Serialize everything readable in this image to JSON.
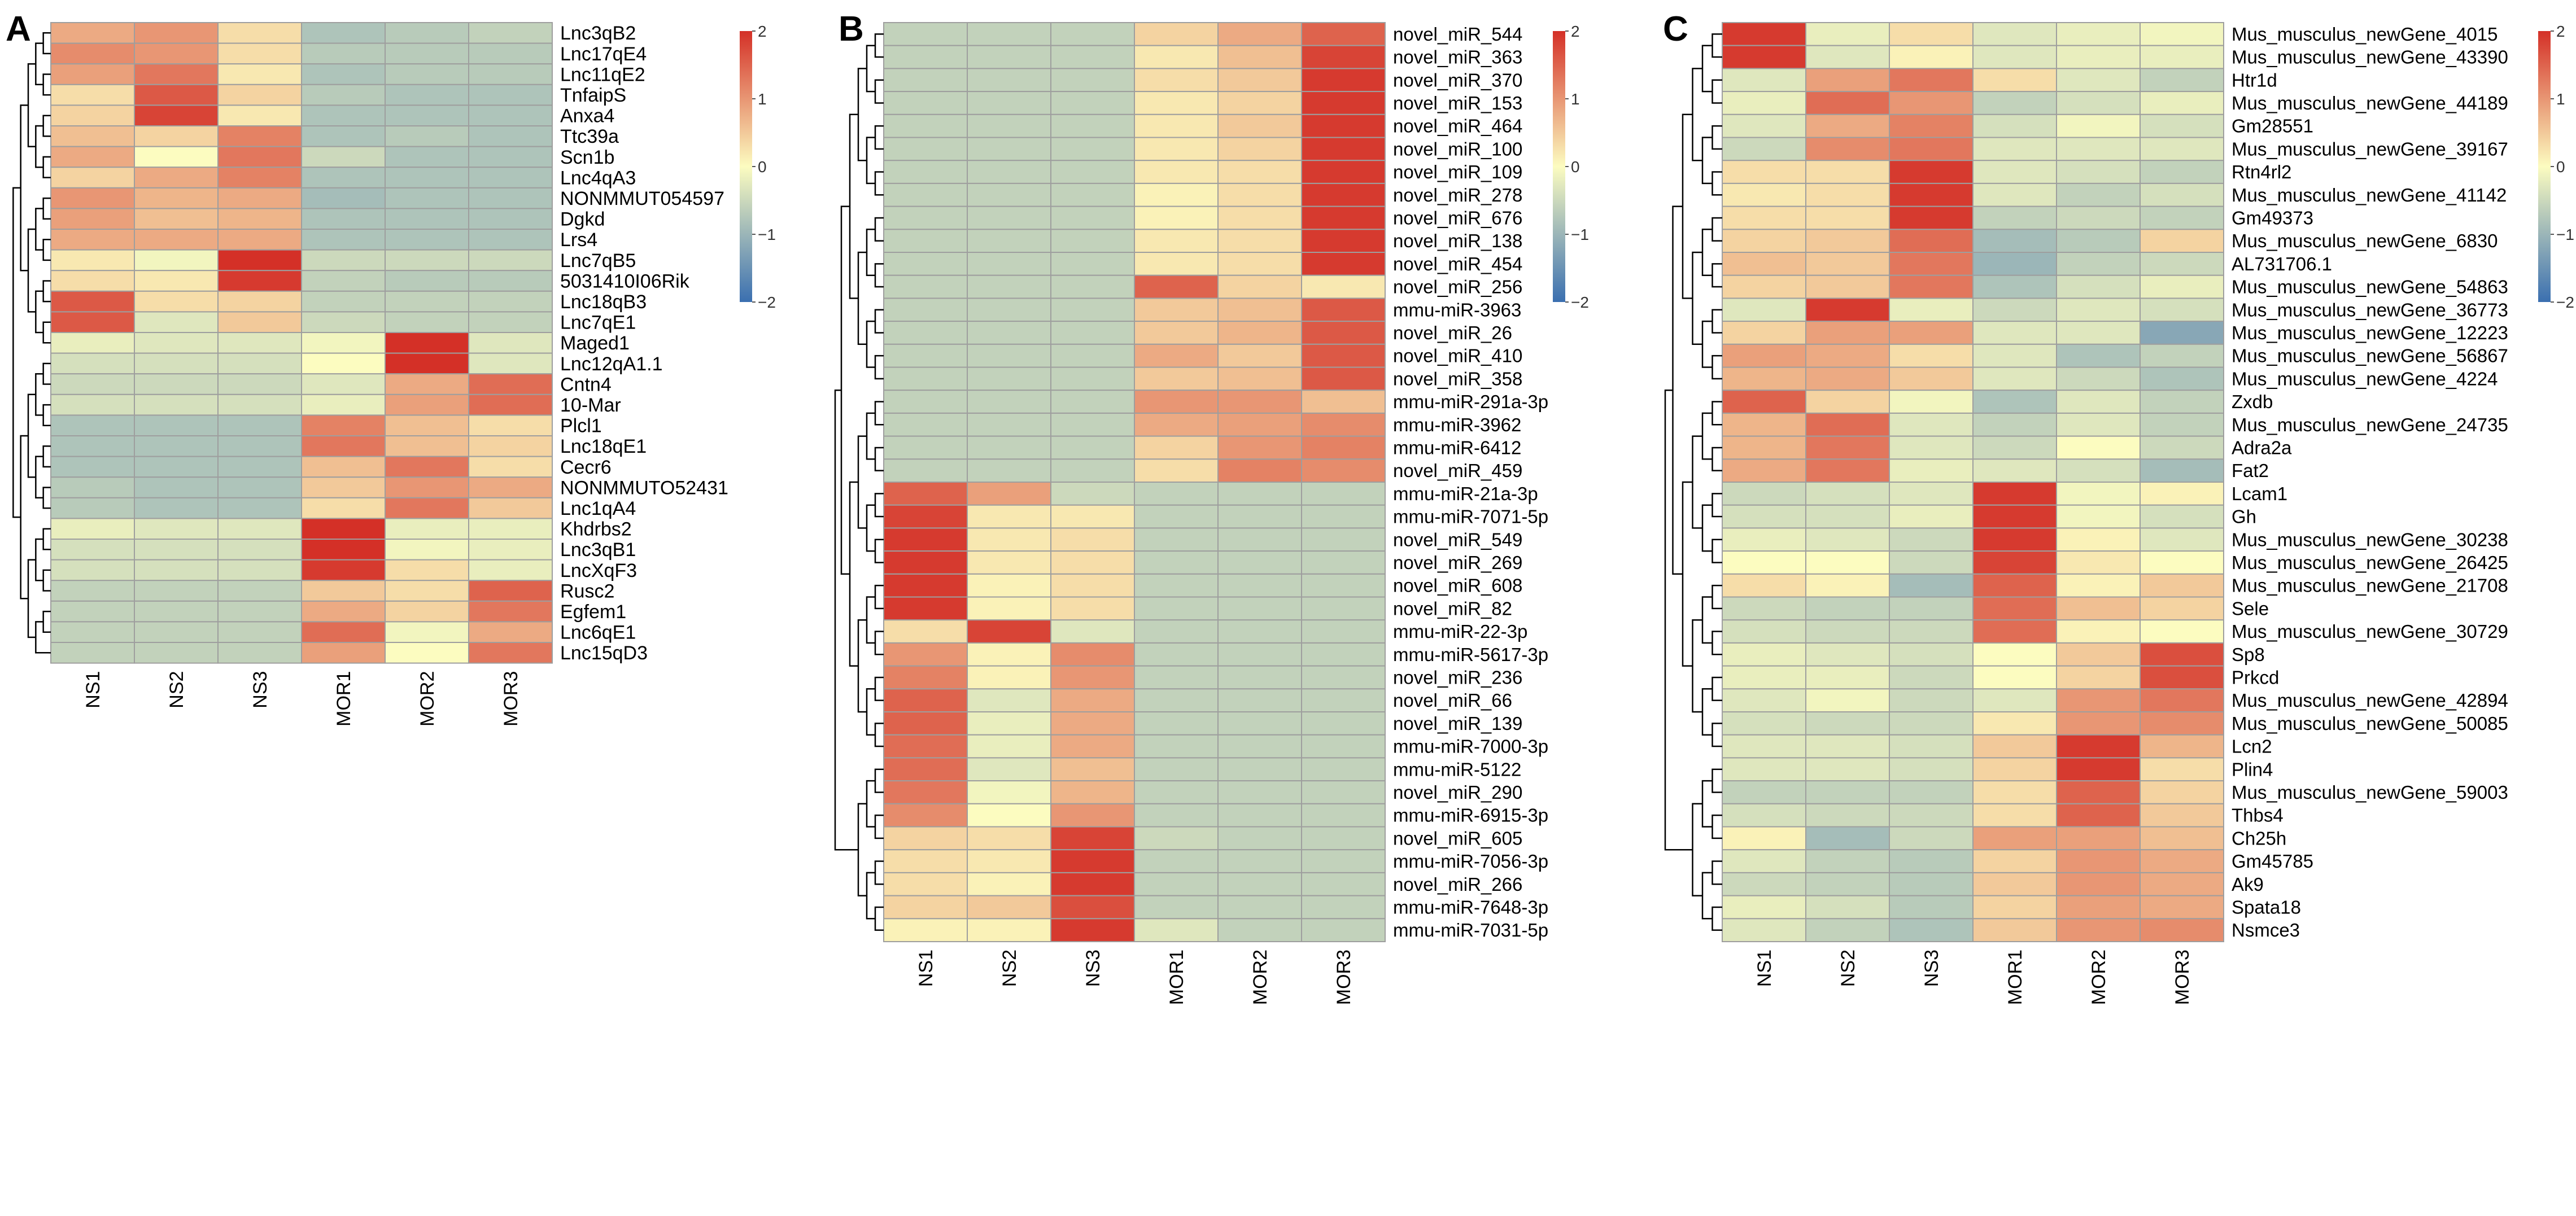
{
  "colors": {
    "low": "#3a6fb0",
    "mid": "#fcfcc0",
    "high": "#d43027",
    "grid": "#9e9e9e",
    "tree": "#000000"
  },
  "chart_data": [
    {
      "panel_label": "A",
      "type": "heatmap",
      "columns": [
        "NS1",
        "NS2",
        "NS3",
        "MOR1",
        "MOR2",
        "MOR3"
      ],
      "rows": [
        "Lnc3qB2",
        "Lnc17qE4",
        "Lnc11qE2",
        "TnfaipS",
        "Anxa4",
        "Ttc39a",
        "Scn1b",
        "Lnc4qA3",
        "NONMMUT054597",
        "Dgkd",
        "Lrs4",
        "Lnc7qB5",
        "5031410I06Rik",
        "Lnc18qB3",
        "Lnc7qE1",
        "Maged1",
        "Lnc12qA1.1",
        "Cntn4",
        "10-Mar",
        "Plcl1",
        "Lnc18qE1",
        "Cecr6",
        "NONMMUTO52431",
        "Lnc1qA4",
        "Khdrbs2",
        "Lnc3qB1",
        "LncXqF3",
        "Rusc2",
        "Egfem1",
        "Lnc6qE1",
        "Lnc15qD3"
      ],
      "values": [
        [
          0.8,
          1.0,
          0.3,
          -0.8,
          -0.7,
          -0.6
        ],
        [
          1.1,
          1.0,
          0.3,
          -0.7,
          -0.7,
          -0.7
        ],
        [
          0.9,
          1.3,
          0.2,
          -0.8,
          -0.7,
          -0.7
        ],
        [
          0.3,
          1.6,
          0.4,
          -0.7,
          -0.8,
          -0.8
        ],
        [
          0.4,
          1.8,
          0.2,
          -0.8,
          -0.8,
          -0.8
        ],
        [
          0.6,
          0.4,
          1.2,
          -0.8,
          -0.7,
          -0.8
        ],
        [
          0.8,
          0.0,
          1.3,
          -0.5,
          -0.8,
          -0.8
        ],
        [
          0.4,
          0.8,
          1.2,
          -0.8,
          -0.8,
          -0.8
        ],
        [
          1.0,
          0.7,
          0.8,
          -0.9,
          -0.8,
          -0.8
        ],
        [
          0.9,
          0.6,
          0.7,
          -0.8,
          -0.8,
          -0.8
        ],
        [
          0.8,
          0.8,
          0.8,
          -0.8,
          -0.8,
          -0.8
        ],
        [
          0.2,
          -0.1,
          2.0,
          -0.5,
          -0.5,
          -0.5
        ],
        [
          0.3,
          0.2,
          1.9,
          -0.6,
          -0.7,
          -0.7
        ],
        [
          1.6,
          0.3,
          0.4,
          -0.6,
          -0.6,
          -0.6
        ],
        [
          1.6,
          -0.3,
          0.5,
          -0.5,
          -0.6,
          -0.6
        ],
        [
          -0.2,
          -0.3,
          -0.3,
          -0.1,
          2.0,
          -0.3
        ],
        [
          -0.4,
          -0.4,
          -0.4,
          0.0,
          2.0,
          -0.3
        ],
        [
          -0.5,
          -0.5,
          -0.5,
          -0.3,
          0.8,
          1.4
        ],
        [
          -0.4,
          -0.4,
          -0.4,
          -0.2,
          0.9,
          1.4
        ],
        [
          -0.8,
          -0.8,
          -0.8,
          1.2,
          0.6,
          0.3
        ],
        [
          -0.8,
          -0.8,
          -0.8,
          1.3,
          0.6,
          0.4
        ],
        [
          -0.8,
          -0.8,
          -0.8,
          0.6,
          1.3,
          0.3
        ],
        [
          -0.7,
          -0.8,
          -0.8,
          0.5,
          1.0,
          0.8
        ],
        [
          -0.7,
          -0.8,
          -0.8,
          0.3,
          1.3,
          0.5
        ],
        [
          -0.2,
          -0.3,
          -0.3,
          2.0,
          -0.2,
          -0.2
        ],
        [
          -0.4,
          -0.4,
          -0.4,
          2.0,
          -0.1,
          -0.2
        ],
        [
          -0.4,
          -0.4,
          -0.4,
          1.9,
          0.3,
          -0.2
        ],
        [
          -0.6,
          -0.6,
          -0.6,
          0.5,
          0.3,
          1.5
        ],
        [
          -0.6,
          -0.6,
          -0.6,
          0.8,
          0.4,
          1.3
        ],
        [
          -0.6,
          -0.6,
          -0.6,
          1.4,
          -0.1,
          0.8
        ],
        [
          -0.6,
          -0.6,
          -0.6,
          0.9,
          0.0,
          1.3
        ]
      ],
      "legend_ticks": [
        2,
        1,
        0,
        -1,
        -2
      ],
      "vmin": -2,
      "vmax": 2
    },
    {
      "panel_label": "B",
      "type": "heatmap",
      "columns": [
        "NS1",
        "NS2",
        "NS3",
        "MOR1",
        "MOR2",
        "MOR3"
      ],
      "rows": [
        "novel_miR_544",
        "novel_miR_363",
        "novel_miR_370",
        "novel_miR_153",
        "novel_miR_464",
        "novel_miR_100",
        "novel_miR_109",
        "novel_miR_278",
        "novel_miR_676",
        "novel_miR_138",
        "novel_miR_454",
        "novel_miR_256",
        "mmu-miR-3963",
        "novel_miR_26",
        "novel_miR_410",
        "novel_miR_358",
        "mmu-miR-291a-3p",
        "mmu-miR-3962",
        "mmu-miR-6412",
        "novel_miR_459",
        "mmu-miR-21a-3p",
        "mmu-miR-7071-5p",
        "novel_miR_549",
        "novel_miR_269",
        "novel_miR_608",
        "novel_miR_82",
        "mmu-miR-22-3p",
        "mmu-miR-5617-3p",
        "novel_miR_236",
        "novel_miR_66",
        "novel_miR_139",
        "mmu-miR-7000-3p",
        "mmu-miR-5122",
        "novel_miR_290",
        "mmu-miR-6915-3p",
        "novel_miR_605",
        "mmu-miR-7056-3p",
        "novel_miR_266",
        "mmu-miR-7648-3p",
        "mmu-miR-7031-5p"
      ],
      "values": [
        [
          -0.6,
          -0.6,
          -0.6,
          0.4,
          0.8,
          1.5
        ],
        [
          -0.6,
          -0.6,
          -0.6,
          0.2,
          0.6,
          1.8
        ],
        [
          -0.6,
          -0.6,
          -0.6,
          0.3,
          0.5,
          1.9
        ],
        [
          -0.6,
          -0.6,
          -0.6,
          0.2,
          0.4,
          1.9
        ],
        [
          -0.6,
          -0.6,
          -0.6,
          0.2,
          0.5,
          1.9
        ],
        [
          -0.6,
          -0.6,
          -0.6,
          0.2,
          0.4,
          1.9
        ],
        [
          -0.6,
          -0.6,
          -0.6,
          0.2,
          0.3,
          1.9
        ],
        [
          -0.6,
          -0.6,
          -0.6,
          0.1,
          0.3,
          1.9
        ],
        [
          -0.6,
          -0.6,
          -0.6,
          0.1,
          0.3,
          1.9
        ],
        [
          -0.6,
          -0.6,
          -0.6,
          0.2,
          0.3,
          1.9
        ],
        [
          -0.6,
          -0.6,
          -0.6,
          0.2,
          0.3,
          1.9
        ],
        [
          -0.6,
          -0.6,
          -0.6,
          1.5,
          0.4,
          0.2
        ],
        [
          -0.6,
          -0.6,
          -0.6,
          0.5,
          0.6,
          1.6
        ],
        [
          -0.6,
          -0.6,
          -0.6,
          0.5,
          0.7,
          1.6
        ],
        [
          -0.6,
          -0.6,
          -0.6,
          0.8,
          0.5,
          1.6
        ],
        [
          -0.6,
          -0.6,
          -0.6,
          0.5,
          0.6,
          1.6
        ],
        [
          -0.6,
          -0.6,
          -0.6,
          1.0,
          1.0,
          0.6
        ],
        [
          -0.6,
          -0.6,
          -0.6,
          0.8,
          0.9,
          1.1
        ],
        [
          -0.6,
          -0.6,
          -0.6,
          0.4,
          1.0,
          1.2
        ],
        [
          -0.6,
          -0.6,
          -0.6,
          0.3,
          1.2,
          1.1
        ],
        [
          1.5,
          0.9,
          -0.5,
          -0.6,
          -0.6,
          -0.6
        ],
        [
          1.8,
          0.2,
          0.2,
          -0.6,
          -0.6,
          -0.6
        ],
        [
          1.9,
          0.2,
          0.3,
          -0.6,
          -0.6,
          -0.6
        ],
        [
          1.9,
          0.2,
          0.3,
          -0.6,
          -0.6,
          -0.6
        ],
        [
          1.9,
          0.1,
          0.3,
          -0.6,
          -0.6,
          -0.6
        ],
        [
          1.9,
          0.1,
          0.3,
          -0.6,
          -0.6,
          -0.6
        ],
        [
          0.3,
          1.8,
          -0.3,
          -0.6,
          -0.6,
          -0.6
        ],
        [
          1.0,
          0.1,
          1.1,
          -0.6,
          -0.6,
          -0.6
        ],
        [
          1.2,
          0.1,
          1.0,
          -0.6,
          -0.6,
          -0.6
        ],
        [
          1.5,
          -0.3,
          0.8,
          -0.6,
          -0.6,
          -0.6
        ],
        [
          1.5,
          -0.2,
          0.8,
          -0.6,
          -0.6,
          -0.6
        ],
        [
          1.4,
          -0.2,
          0.8,
          -0.6,
          -0.6,
          -0.6
        ],
        [
          1.4,
          -0.3,
          0.6,
          -0.6,
          -0.6,
          -0.6
        ],
        [
          1.3,
          -0.1,
          0.7,
          -0.6,
          -0.6,
          -0.6
        ],
        [
          1.1,
          0.0,
          1.0,
          -0.6,
          -0.6,
          -0.6
        ],
        [
          0.4,
          0.3,
          1.8,
          -0.5,
          -0.6,
          -0.6
        ],
        [
          0.3,
          0.2,
          1.9,
          -0.6,
          -0.6,
          -0.6
        ],
        [
          0.3,
          0.1,
          1.9,
          -0.6,
          -0.6,
          -0.6
        ],
        [
          0.4,
          0.5,
          1.7,
          -0.6,
          -0.6,
          -0.6
        ],
        [
          0.1,
          0.1,
          1.9,
          -0.3,
          -0.6,
          -0.6
        ]
      ],
      "legend_ticks": [
        2,
        1,
        0,
        -1,
        -2
      ],
      "vmin": -2,
      "vmax": 2
    },
    {
      "panel_label": "C",
      "type": "heatmap",
      "columns": [
        "NS1",
        "NS2",
        "NS3",
        "MOR1",
        "MOR2",
        "MOR3"
      ],
      "rows": [
        "Mus_musculus_newGene_4015",
        "Mus_musculus_newGene_43390",
        "Htr1d",
        "Mus_musculus_newGene_44189",
        "Gm28551",
        "Mus_musculus_newGene_39167",
        "Rtn4rl2",
        "Mus_musculus_newGene_41142",
        "Gm49373",
        "Mus_musculus_newGene_6830",
        "AL731706.1",
        "Mus_musculus_newGene_54863",
        "Mus_musculus_newGene_36773",
        "Mus_musculus_newGene_12223",
        "Mus_musculus_newGene_56867",
        "Mus_musculus_newGene_4224",
        "Zxdb",
        "Mus_musculus_newGene_24735",
        "Adra2a",
        "Fat2",
        "Lcam1",
        "Gh",
        "Mus_musculus_newGene_30238",
        "Mus_musculus_newGene_26425",
        "Mus_musculus_newGene_21708",
        "Sele",
        "Mus_musculus_newGene_30729",
        "Sp8",
        "Prkcd",
        "Mus_musculus_newGene_42894",
        "Mus_musculus_newGene_50085",
        "Lcn2",
        "Plin4",
        "Mus_musculus_newGene_59003",
        "Thbs4",
        "Ch25h",
        "Gm45785",
        "Ak9",
        "Spata18",
        "Nsmce3"
      ],
      "values": [
        [
          1.9,
          -0.2,
          0.3,
          -0.3,
          -0.2,
          -0.1
        ],
        [
          1.9,
          -0.3,
          0.1,
          -0.3,
          -0.2,
          -0.2
        ],
        [
          -0.3,
          0.9,
          1.3,
          0.3,
          -0.3,
          -0.6
        ],
        [
          -0.2,
          1.4,
          1.0,
          -0.6,
          -0.4,
          -0.2
        ],
        [
          -0.3,
          0.8,
          1.2,
          -0.4,
          -0.1,
          -0.4
        ],
        [
          -0.5,
          1.1,
          1.3,
          -0.3,
          -0.3,
          -0.3
        ],
        [
          0.3,
          0.3,
          1.9,
          -0.3,
          -0.4,
          -0.6
        ],
        [
          0.2,
          0.3,
          1.9,
          -0.3,
          -0.6,
          -0.4
        ],
        [
          0.3,
          0.3,
          1.9,
          -0.6,
          -0.5,
          -0.6
        ],
        [
          0.4,
          0.5,
          1.4,
          -0.9,
          -0.7,
          0.4
        ],
        [
          0.6,
          0.5,
          1.3,
          -1.0,
          -0.6,
          -0.5
        ],
        [
          0.4,
          0.5,
          1.3,
          -0.8,
          -0.4,
          -0.2
        ],
        [
          -0.3,
          1.9,
          -0.2,
          -0.5,
          -0.3,
          -0.4
        ],
        [
          0.4,
          0.9,
          0.9,
          -0.3,
          -0.3,
          -1.2
        ],
        [
          0.9,
          0.8,
          0.3,
          -0.3,
          -0.8,
          -0.6
        ],
        [
          0.7,
          0.8,
          0.5,
          -0.3,
          -0.5,
          -0.8
        ],
        [
          1.5,
          0.4,
          -0.1,
          -0.8,
          -0.3,
          -0.6
        ],
        [
          0.7,
          1.4,
          -0.3,
          -0.6,
          -0.3,
          -0.6
        ],
        [
          0.7,
          1.3,
          -0.3,
          -0.5,
          0.0,
          -0.5
        ],
        [
          0.8,
          1.3,
          -0.2,
          -0.3,
          -0.4,
          -0.9
        ],
        [
          -0.5,
          -0.4,
          -0.3,
          1.9,
          -0.1,
          0.1
        ],
        [
          -0.4,
          -0.4,
          -0.2,
          1.9,
          -0.1,
          -0.4
        ],
        [
          -0.2,
          -0.3,
          -0.5,
          1.9,
          0.1,
          -0.3
        ],
        [
          0.0,
          0.0,
          -0.5,
          1.8,
          0.2,
          0.0
        ],
        [
          0.3,
          0.1,
          -0.9,
          1.5,
          0.1,
          0.5
        ],
        [
          -0.5,
          -0.6,
          -0.6,
          1.4,
          0.6,
          0.4
        ],
        [
          -0.4,
          -0.5,
          -0.5,
          1.4,
          0.1,
          0.0
        ],
        [
          -0.2,
          -0.3,
          -0.4,
          0.0,
          0.5,
          1.7
        ],
        [
          -0.2,
          -0.2,
          -0.5,
          0.0,
          0.4,
          1.7
        ],
        [
          -0.3,
          -0.1,
          -0.5,
          -0.3,
          1.0,
          1.3
        ],
        [
          -0.4,
          -0.5,
          -0.5,
          0.2,
          1.0,
          1.1
        ],
        [
          -0.3,
          -0.3,
          -0.4,
          0.5,
          1.9,
          0.7
        ],
        [
          -0.3,
          -0.3,
          -0.4,
          0.4,
          1.9,
          0.3
        ],
        [
          -0.6,
          -0.6,
          -0.6,
          0.3,
          1.5,
          0.4
        ],
        [
          -0.4,
          -0.5,
          -0.5,
          0.3,
          1.5,
          0.5
        ],
        [
          0.1,
          -0.9,
          -0.5,
          0.9,
          0.9,
          0.6
        ],
        [
          -0.3,
          -0.6,
          -0.7,
          0.4,
          1.0,
          0.8
        ],
        [
          -0.5,
          -0.6,
          -0.7,
          0.5,
          1.0,
          0.8
        ],
        [
          -0.2,
          -0.4,
          -0.7,
          0.4,
          0.9,
          0.8
        ],
        [
          -0.3,
          -0.6,
          -0.8,
          0.5,
          1.0,
          1.1
        ]
      ],
      "legend_ticks": [
        2,
        1,
        0,
        -1,
        -2
      ],
      "vmin": -2,
      "vmax": 2
    }
  ]
}
